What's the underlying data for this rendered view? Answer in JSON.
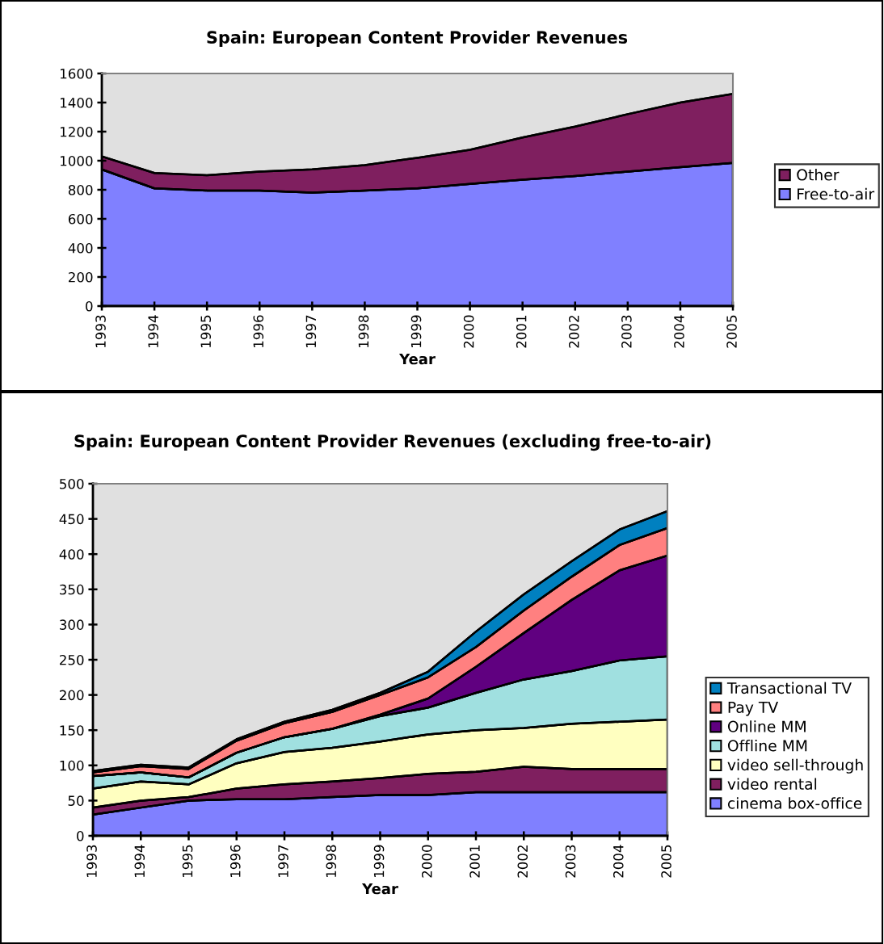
{
  "chart_data": [
    {
      "type": "area",
      "stacked": true,
      "title": "Spain: European Content Provider Revenues",
      "xlabel": "Year",
      "categories": [
        "1993",
        "1994",
        "1995",
        "1996",
        "1997",
        "1998",
        "1999",
        "2000",
        "2001",
        "2002",
        "2003",
        "2004",
        "2005"
      ],
      "series": [
        {
          "name": "Free-to-air",
          "color": "#8080ff",
          "values": [
            940,
            810,
            795,
            795,
            780,
            795,
            810,
            840,
            870,
            895,
            925,
            955,
            985
          ]
        },
        {
          "name": "Other",
          "color": "#7f1f5f",
          "values": [
            90,
            105,
            105,
            130,
            160,
            175,
            210,
            235,
            290,
            340,
            395,
            445,
            475
          ]
        }
      ],
      "ylim": [
        0,
        1600
      ],
      "yticks": [
        0,
        200,
        400,
        600,
        800,
        1000,
        1200,
        1400,
        1600
      ],
      "grid": false,
      "legend": "right"
    },
    {
      "type": "area",
      "stacked": true,
      "title": "Spain: European Content Provider Revenues (excluding free-to-air)",
      "xlabel": "Year",
      "categories": [
        "1993",
        "1994",
        "1995",
        "1996",
        "1997",
        "1998",
        "1999",
        "2000",
        "2001",
        "2002",
        "2003",
        "2004",
        "2005"
      ],
      "series": [
        {
          "name": "cinema box-office",
          "color": "#8080ff",
          "values": [
            30,
            40,
            50,
            52,
            52,
            55,
            58,
            58,
            62,
            62,
            62,
            62,
            62
          ]
        },
        {
          "name": "video rental",
          "color": "#7f1f5f",
          "values": [
            10,
            10,
            5,
            15,
            21,
            22,
            24,
            30,
            29,
            36,
            33,
            33,
            33
          ]
        },
        {
          "name": "video sell-through",
          "color": "#ffffc0",
          "values": [
            27,
            27,
            18,
            36,
            46,
            48,
            52,
            56,
            59,
            55,
            64,
            67,
            70
          ]
        },
        {
          "name": "Offline MM",
          "color": "#a0e0e0",
          "values": [
            18,
            13,
            10,
            15,
            21,
            27,
            36,
            38,
            53,
            69,
            75,
            87,
            90
          ]
        },
        {
          "name": "Online MM",
          "color": "#600080",
          "values": [
            0,
            0,
            0,
            0,
            0,
            0,
            2,
            13,
            37,
            66,
            101,
            128,
            143
          ]
        },
        {
          "name": "Pay TV",
          "color": "#ff8080",
          "values": [
            5,
            9,
            12,
            17,
            20,
            24,
            28,
            30,
            28,
            32,
            33,
            36,
            39
          ]
        },
        {
          "name": "Transactional TV",
          "color": "#0080c0",
          "values": [
            2,
            2,
            2,
            2,
            2,
            3,
            3,
            8,
            22,
            23,
            22,
            22,
            24
          ]
        }
      ],
      "ylim": [
        0,
        500
      ],
      "yticks": [
        0,
        50,
        100,
        150,
        200,
        250,
        300,
        350,
        400,
        450,
        500
      ],
      "grid": false,
      "legend": "right"
    }
  ]
}
